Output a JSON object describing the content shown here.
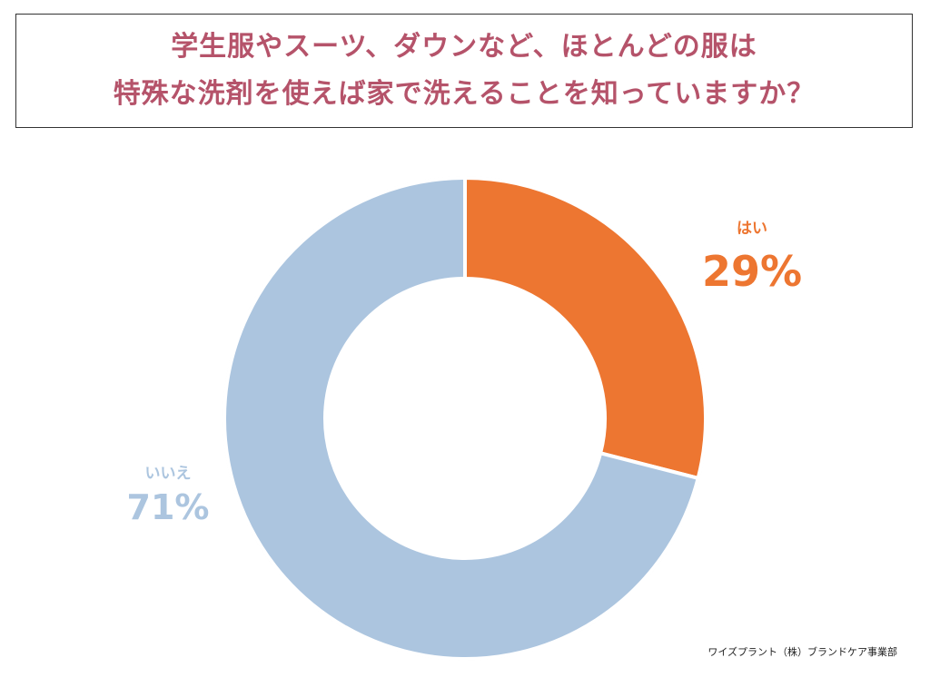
{
  "title": {
    "line1": "学生服やスーツ、ダウンなど、ほとんどの服は",
    "line2": "特殊な洗剤を使えば家で洗えることを知っていますか？",
    "color": "#b5536a"
  },
  "chart_data": {
    "type": "pie",
    "variant": "donut",
    "slices": [
      {
        "label": "はい",
        "value": 29,
        "display": "29%",
        "color": "#ed7631"
      },
      {
        "label": "いいえ",
        "value": 71,
        "display": "71%",
        "color": "#acc5df"
      }
    ],
    "start": "12 o'clock",
    "direction": "clockwise"
  },
  "source": "ワイズプラント（株）ブランドケア事業部"
}
